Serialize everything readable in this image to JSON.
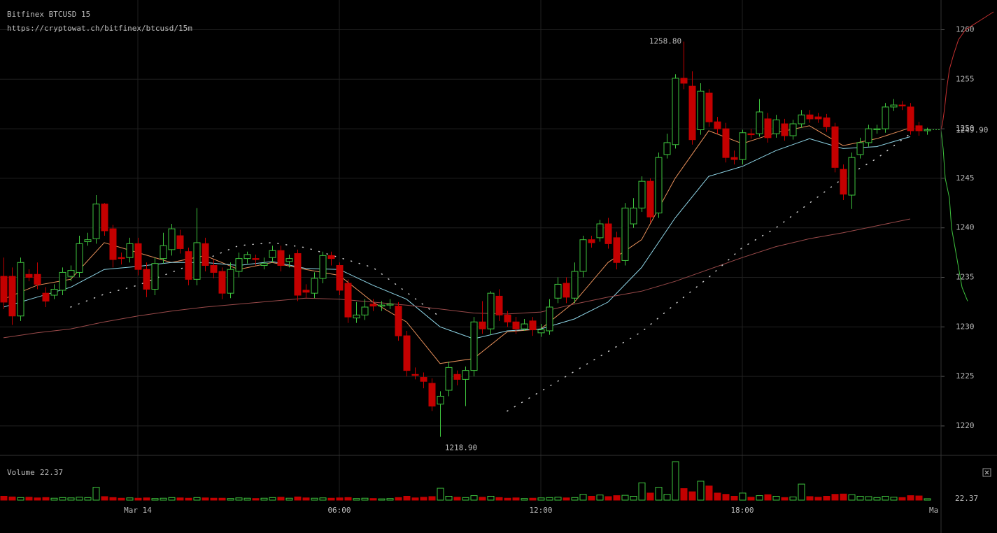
{
  "chart_data": {
    "type": "candlestick",
    "title": "Bitfinex BTCUSD 15",
    "subtitle": "https://cryptowat.ch/bitfinex/btcusd/15m",
    "up_color": "#3ec43e",
    "down_color": "#c40000",
    "x": [
      "20:00",
      "20:15",
      "20:30",
      "20:45",
      "21:00",
      "21:15",
      "21:30",
      "21:45",
      "22:00",
      "22:15",
      "22:30",
      "22:45",
      "23:00",
      "23:15",
      "23:30",
      "23:45",
      "00:00",
      "00:15",
      "00:30",
      "00:45",
      "01:00",
      "01:15",
      "01:30",
      "01:45",
      "02:00",
      "02:15",
      "02:30",
      "02:45",
      "03:00",
      "03:15",
      "03:30",
      "03:45",
      "04:00",
      "04:15",
      "04:30",
      "04:45",
      "05:00",
      "05:15",
      "05:30",
      "05:45",
      "06:00",
      "06:15",
      "06:30",
      "06:45",
      "07:00",
      "07:15",
      "07:30",
      "07:45",
      "08:00",
      "08:15",
      "08:30",
      "08:45",
      "09:00",
      "09:15",
      "09:30",
      "09:45",
      "10:00",
      "10:15",
      "10:30",
      "10:45",
      "11:00",
      "11:15",
      "11:30",
      "11:45",
      "12:00",
      "12:15",
      "12:30",
      "12:45",
      "13:00",
      "13:15",
      "13:30",
      "13:45",
      "14:00",
      "14:15",
      "14:30",
      "14:45",
      "15:00",
      "15:15",
      "15:30",
      "15:45",
      "16:00",
      "16:15",
      "16:30",
      "16:45",
      "17:00",
      "17:15",
      "17:30",
      "17:45",
      "18:00",
      "18:15",
      "18:30",
      "18:45",
      "19:00",
      "19:15",
      "19:30",
      "19:45",
      "20:00",
      "20:15",
      "20:30",
      "20:45",
      "21:00",
      "21:15",
      "21:30",
      "21:45",
      "22:00",
      "22:15",
      "22:30",
      "22:45",
      "23:00",
      "23:15",
      "23:30"
    ],
    "open": [
      1235.1,
      1235.1,
      1231.1,
      1235.3,
      1235.3,
      1233.4,
      1233.2,
      1233.7,
      1235.1,
      1235.5,
      1238.6,
      1238.9,
      1242.4,
      1239.9,
      1237,
      1237,
      1238.4,
      1235.8,
      1233.8,
      1236.9,
      1237.8,
      1239.2,
      1237.6,
      1234.8,
      1238.4,
      1236.2,
      1235.6,
      1233.4,
      1235.6,
      1236.9,
      1236.9,
      1236.2,
      1237,
      1237.7,
      1236.6,
      1237.4,
      1233.7,
      1233.4,
      1234.9,
      1237.2,
      1236.2,
      1234.4,
      1230.9,
      1231.2,
      1232.3,
      1232.1,
      1232.2,
      1232.1,
      1229.1,
      1225.2,
      1224.9,
      1224.3,
      1222.2,
      1223.6,
      1225.2,
      1224.7,
      1225.6,
      1230.5,
      1229.8,
      1233.1,
      1231.2,
      1230.5,
      1229.8,
      1230.6,
      1229.4,
      1229.6,
      1232.9,
      1234.4,
      1232.9,
      1235.6,
      1238.8,
      1239,
      1240.4,
      1239,
      1236.7,
      1240.4,
      1242,
      1244.7,
      1241.5,
      1247.4,
      1248.4,
      1255.1,
      1254.3,
      1249.9,
      1253.6,
      1250.7,
      1250,
      1247.1,
      1246.9,
      1249.5,
      1249.5,
      1251,
      1249.5,
      1250.5,
      1249.3,
      1250.5,
      1251.4,
      1251.2,
      1251.1,
      1250.2,
      1245.9,
      1243.3,
      1247.4,
      1248.6,
      1249.9,
      1250,
      1252.2,
      1252.4,
      1252.2,
      1250.3,
      1249.8
    ],
    "high": [
      1237,
      1236,
      1237,
      1235.8,
      1236.5,
      1234,
      1234.3,
      1236,
      1236.2,
      1239.2,
      1239.5,
      1243.3,
      1242.5,
      1240.3,
      1237.5,
      1239,
      1239,
      1236.5,
      1237,
      1239.5,
      1240.4,
      1239.8,
      1238,
      1242,
      1239,
      1236.8,
      1236,
      1236.5,
      1237.5,
      1237.6,
      1237.3,
      1237,
      1238.2,
      1238.2,
      1237.3,
      1237.8,
      1234.3,
      1235.5,
      1237.6,
      1237.6,
      1236.5,
      1234.8,
      1232.5,
      1232.8,
      1232.8,
      1232.6,
      1232.8,
      1232.5,
      1229.6,
      1225.9,
      1225.4,
      1224.8,
      1223.5,
      1226.5,
      1225.6,
      1226,
      1231,
      1232.6,
      1233.6,
      1233.8,
      1231.6,
      1231,
      1230.8,
      1231,
      1230.3,
      1232.8,
      1235,
      1235,
      1236.5,
      1239.2,
      1239.2,
      1240.8,
      1241,
      1239.6,
      1242.5,
      1243,
      1245.2,
      1245,
      1247.6,
      1249.5,
      1255.5,
      1258.8,
      1255.8,
      1254.6,
      1254,
      1251.2,
      1250.6,
      1247.8,
      1249.9,
      1250,
      1253,
      1251.6,
      1251.4,
      1251,
      1250.9,
      1251.9,
      1251.9,
      1251.6,
      1251.5,
      1250.6,
      1246.4,
      1247.6,
      1249.1,
      1250.4,
      1250.4,
      1252.6,
      1253,
      1252.8,
      1252.6,
      1250.7,
      1250.1
    ],
    "low": [
      1231.8,
      1230.2,
      1230.6,
      1234.6,
      1233.8,
      1232,
      1232.8,
      1233.2,
      1234.6,
      1235,
      1238.2,
      1238.4,
      1239.2,
      1236,
      1236.3,
      1236.5,
      1235.2,
      1233,
      1233.2,
      1236.4,
      1237.2,
      1237.4,
      1234.2,
      1234.2,
      1235.6,
      1234.9,
      1232.8,
      1232.9,
      1235,
      1236.4,
      1236.2,
      1235.8,
      1236.5,
      1235.6,
      1236,
      1232.6,
      1232.9,
      1232.9,
      1234.4,
      1236.2,
      1233.2,
      1230.4,
      1230.4,
      1230.7,
      1231.6,
      1231.6,
      1231.8,
      1228.6,
      1225,
      1224.7,
      1223.8,
      1221.5,
      1218.9,
      1223,
      1224.1,
      1222,
      1225,
      1229.3,
      1229.2,
      1230.6,
      1230,
      1229.3,
      1229.6,
      1229.1,
      1229,
      1229.2,
      1232.4,
      1232.4,
      1232.4,
      1235,
      1238,
      1238.6,
      1237.9,
      1235.8,
      1236.2,
      1240,
      1241.6,
      1240.5,
      1241,
      1247,
      1248,
      1254,
      1248.4,
      1249.4,
      1250.2,
      1249.5,
      1246.6,
      1246.4,
      1246.4,
      1249,
      1249.2,
      1248.6,
      1249.1,
      1248.8,
      1248.9,
      1250.1,
      1250.6,
      1250.6,
      1249.7,
      1245.6,
      1242.8,
      1241.9,
      1247,
      1248.2,
      1249.5,
      1249.6,
      1251.8,
      1251.9,
      1249.4,
      1249.3,
      1249.4
    ],
    "close": [
      1232.5,
      1231.1,
      1236.5,
      1235,
      1234.3,
      1232.6,
      1233.8,
      1235.5,
      1235.7,
      1238.4,
      1238.8,
      1242.4,
      1239.7,
      1236.8,
      1236.9,
      1238.4,
      1235.8,
      1233.8,
      1236.4,
      1238.2,
      1239.9,
      1237.9,
      1234.8,
      1238.5,
      1236.2,
      1235.5,
      1233.4,
      1235.8,
      1236.9,
      1237.3,
      1236.8,
      1236.4,
      1237.7,
      1236.2,
      1236.9,
      1233.2,
      1233.5,
      1234.9,
      1237.2,
      1236.9,
      1233.7,
      1231,
      1231.2,
      1232,
      1232.1,
      1232.2,
      1232.3,
      1229.1,
      1225.6,
      1225.1,
      1224.5,
      1222,
      1223,
      1225.9,
      1224.7,
      1225.6,
      1230.5,
      1229.8,
      1233.4,
      1231.2,
      1230.5,
      1229.8,
      1230.3,
      1229.7,
      1229.7,
      1232,
      1234.3,
      1233,
      1235.6,
      1238.8,
      1238.5,
      1240.4,
      1238.4,
      1236.5,
      1242,
      1242,
      1244.7,
      1241.1,
      1247.1,
      1248.6,
      1255.1,
      1254.6,
      1248.9,
      1253.8,
      1250.7,
      1250,
      1247.1,
      1246.9,
      1249.6,
      1249.4,
      1251.7,
      1249.1,
      1250.9,
      1249.3,
      1250.5,
      1251.4,
      1251,
      1251,
      1250.2,
      1246.1,
      1243.4,
      1247.1,
      1248.6,
      1250,
      1250,
      1252.2,
      1252.4,
      1252.3,
      1249.8,
      1249.8,
      1249.9
    ],
    "ylim": [
      1217.1,
      1263.0
    ],
    "yticks": [
      1220,
      1225,
      1230,
      1235,
      1240,
      1245,
      1250,
      1255,
      1260
    ],
    "grid": true,
    "xticks": [
      {
        "value": "00:00",
        "label": "Mar 14"
      },
      "06:00",
      "12:00",
      "18:00"
    ],
    "x_edge_label": "Ma",
    "last_price": {
      "value": 1249.9,
      "label": "1249.90"
    },
    "annotations": [
      {
        "x": "16:15",
        "value": 1258.8,
        "label": "1258.80"
      },
      {
        "x": "09:00",
        "value": 1218.9,
        "label": "1218.90"
      }
    ],
    "lines": [
      {
        "color": "#e8905a",
        "dash": false,
        "x": [
          "20:00",
          "21:00",
          "22:00",
          "23:00",
          "00:00",
          "01:00",
          "02:00",
          "03:00",
          "04:00",
          "05:00",
          "06:00",
          "07:00",
          "08:00",
          "09:00",
          "10:00",
          "11:00",
          "12:00",
          "13:00",
          "14:00",
          "15:00",
          "16:00",
          "17:00",
          "18:00",
          "19:00",
          "20:00",
          "21:00",
          "22:00",
          "23:00"
        ],
        "values": [
          1232.8,
          1234.2,
          1234.8,
          1238.5,
          1237.5,
          1236.5,
          1237.2,
          1235.8,
          1236.5,
          1235.8,
          1235.2,
          1232.5,
          1230.5,
          1226.3,
          1226.8,
          1229.5,
          1229.8,
          1232.5,
          1236.5,
          1238.8,
          1245,
          1249.8,
          1248.5,
          1249.6,
          1250.3,
          1248.3,
          1249,
          1250.1
        ]
      },
      {
        "color": "#8fd6e8",
        "dash": false,
        "x": [
          "20:00",
          "21:00",
          "22:00",
          "23:00",
          "00:00",
          "01:00",
          "02:00",
          "03:00",
          "04:00",
          "05:00",
          "06:00",
          "07:00",
          "08:00",
          "09:00",
          "10:00",
          "11:00",
          "12:00",
          "13:00",
          "14:00",
          "15:00",
          "16:00",
          "17:00",
          "18:00",
          "19:00",
          "20:00",
          "21:00",
          "22:00",
          "23:00"
        ],
        "values": [
          1232,
          1233,
          1234,
          1235.8,
          1236.1,
          1236.5,
          1236.5,
          1236.2,
          1236.6,
          1235.9,
          1235.8,
          1234.2,
          1232.8,
          1230,
          1228.8,
          1229.6,
          1229.8,
          1230.8,
          1232.5,
          1236,
          1241,
          1245.2,
          1246.2,
          1247.8,
          1249,
          1248,
          1248.2,
          1249.2
        ]
      },
      {
        "color": "#9a4a4a",
        "dash": false,
        "x": [
          "20:00",
          "21:00",
          "22:00",
          "23:00",
          "00:00",
          "01:00",
          "02:00",
          "03:00",
          "04:00",
          "05:00",
          "06:00",
          "07:00",
          "08:00",
          "09:00",
          "10:00",
          "11:00",
          "12:00",
          "13:00",
          "14:00",
          "15:00",
          "16:00",
          "17:00",
          "18:00",
          "19:00",
          "20:00",
          "21:00",
          "22:00",
          "23:00"
        ],
        "values": [
          1228.9,
          1229.4,
          1229.8,
          1230.5,
          1231.1,
          1231.6,
          1232,
          1232.3,
          1232.6,
          1232.9,
          1232.8,
          1232.5,
          1232.2,
          1231.8,
          1231.4,
          1231.3,
          1231.5,
          1232.3,
          1233,
          1233.6,
          1234.6,
          1235.8,
          1237,
          1238.1,
          1238.9,
          1239.5,
          1240.2,
          1240.9
        ]
      },
      {
        "color": "#cccccc",
        "dash": true,
        "x": [
          "20:00",
          "21:00",
          "22:00",
          "23:00",
          "00:00",
          "01:00",
          "02:00",
          "03:00",
          "04:00",
          "05:00",
          "06:00",
          "07:00",
          "08:00",
          "09:00",
          "10:00",
          "11:00",
          "12:00",
          "13:00",
          "14:00",
          "15:00",
          "16:00",
          "17:00",
          "18:00",
          "19:00",
          "20:00",
          "21:00",
          "22:00",
          "23:00"
        ],
        "values": [
          null,
          null,
          1232,
          1233.3,
          1234.2,
          1235.5,
          1236.8,
          1238.2,
          1238.5,
          1238,
          1237,
          1236,
          1233.5,
          1231,
          null,
          1221.5,
          1223.5,
          1225.5,
          1227.5,
          1229.5,
          1232.3,
          1235,
          1238,
          1240,
          1242.5,
          1245,
          1247,
          1249.5
        ]
      }
    ],
    "volume": {
      "label": "Volume",
      "ylim": [
        0,
        600
      ],
      "values": [
        60,
        50,
        40,
        45,
        35,
        40,
        30,
        40,
        35,
        45,
        40,
        200,
        55,
        40,
        30,
        35,
        30,
        35,
        25,
        30,
        40,
        35,
        30,
        40,
        35,
        30,
        30,
        25,
        35,
        30,
        25,
        30,
        40,
        45,
        30,
        50,
        35,
        30,
        35,
        30,
        35,
        40,
        25,
        30,
        25,
        20,
        25,
        40,
        60,
        35,
        45,
        55,
        185,
        60,
        45,
        40,
        70,
        45,
        60,
        40,
        30,
        35,
        25,
        30,
        35,
        40,
        45,
        35,
        40,
        90,
        60,
        80,
        55,
        70,
        75,
        60,
        270,
        110,
        200,
        90,
        600,
        180,
        130,
        295,
        220,
        110,
        90,
        60,
        110,
        45,
        70,
        85,
        60,
        40,
        50,
        250,
        55,
        45,
        60,
        90,
        95,
        85,
        60,
        55,
        40,
        60,
        45,
        40,
        70,
        65,
        22.37
      ]
    },
    "depth": {
      "xlim": [
        0,
        80
      ],
      "asks": {
        "color": "#c43030",
        "prices": [
          1249.9,
          1250.5,
          1252,
          1254,
          1256,
          1257.5,
          1259,
          1260,
          1261.8
        ],
        "amounts": [
          0,
          2,
          5,
          8,
          12,
          18,
          25,
          35,
          75
        ]
      },
      "bids": {
        "color": "#3ec43e",
        "prices": [
          1249.9,
          1248,
          1245,
          1243,
          1240,
          1238,
          1236,
          1234,
          1232.6
        ],
        "amounts": [
          0,
          3,
          6,
          12,
          15,
          20,
          25,
          30,
          38
        ]
      }
    }
  }
}
